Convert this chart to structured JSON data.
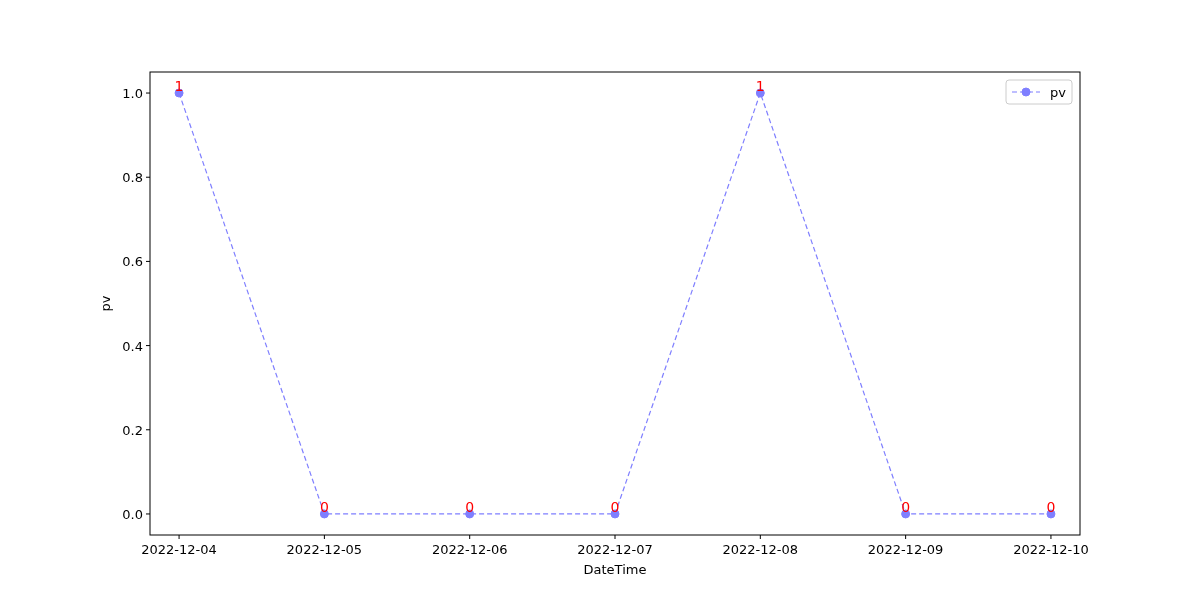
{
  "chart_data": {
    "type": "line",
    "xlabel": "DateTime",
    "ylabel": "pv",
    "x": [
      "2022-12-04",
      "2022-12-05",
      "2022-12-06",
      "2022-12-07",
      "2022-12-08",
      "2022-12-09",
      "2022-12-10"
    ],
    "series": [
      {
        "name": "pv",
        "color": "#7f7fff",
        "values": [
          1,
          0,
          0,
          0,
          1,
          0,
          0
        ]
      }
    ],
    "xlim": [
      "2022-12-03T19:12",
      "2022-12-10T04:48"
    ],
    "xticks": [
      "2022-12-04",
      "2022-12-05",
      "2022-12-06",
      "2022-12-07",
      "2022-12-08",
      "2022-12-09",
      "2022-12-10"
    ],
    "ylim": [
      -0.05,
      1.05
    ],
    "yticks": [
      {
        "value": 0,
        "label": "0.0"
      },
      {
        "value": 0.2,
        "label": "0.2"
      },
      {
        "value": 0.4,
        "label": "0.4"
      },
      {
        "value": 0.6,
        "label": "0.6"
      },
      {
        "value": 0.8,
        "label": "0.8"
      },
      {
        "value": 1,
        "label": "1.0"
      }
    ],
    "data_labels": true,
    "legend": "top right",
    "marker": "circle",
    "line_style": "dashed",
    "grid": false
  }
}
